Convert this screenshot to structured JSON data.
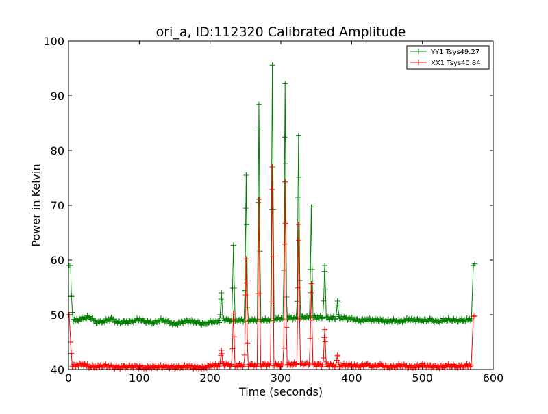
{
  "chart_data": {
    "type": "line",
    "title": "ori_a, ID:112320 Calibrated Amplitude",
    "xlabel": "Time (seconds)",
    "ylabel": "Power in Kelvin",
    "xlim": [
      0,
      600
    ],
    "ylim": [
      40,
      100
    ],
    "xticks": [
      0,
      100,
      200,
      300,
      400,
      500,
      600
    ],
    "yticks": [
      40,
      50,
      60,
      70,
      80,
      90,
      100
    ],
    "xtick_labels": [
      "0",
      "100",
      "200",
      "300",
      "400",
      "500",
      "600"
    ],
    "ytick_labels": [
      "40",
      "50",
      "60",
      "70",
      "80",
      "90",
      "100"
    ],
    "grid": false,
    "legend_position": "top-right",
    "marker": "+",
    "series": [
      {
        "name": "YY1 Tsys49.27",
        "color": "#008000",
        "baseline_points": [
          [
            3,
            49.0
          ],
          [
            10,
            49.0
          ],
          [
            20,
            49.3
          ],
          [
            30,
            49.6
          ],
          [
            40,
            48.6
          ],
          [
            50,
            48.8
          ],
          [
            60,
            49.3
          ],
          [
            70,
            48.6
          ],
          [
            80,
            48.7
          ],
          [
            90,
            48.8
          ],
          [
            100,
            49.2
          ],
          [
            110,
            48.7
          ],
          [
            120,
            48.5
          ],
          [
            130,
            49.1
          ],
          [
            140,
            48.8
          ],
          [
            150,
            48.2
          ],
          [
            160,
            48.7
          ],
          [
            170,
            48.9
          ],
          [
            180,
            48.7
          ],
          [
            190,
            48.3
          ],
          [
            200,
            48.7
          ],
          [
            210,
            48.7
          ],
          [
            220,
            49.2
          ],
          [
            230,
            48.9
          ],
          [
            240,
            49.0
          ],
          [
            250,
            49.0
          ],
          [
            260,
            49.0
          ],
          [
            270,
            49.1
          ],
          [
            280,
            49.0
          ],
          [
            290,
            49.2
          ],
          [
            300,
            49.3
          ],
          [
            310,
            49.4
          ],
          [
            320,
            49.4
          ],
          [
            330,
            49.5
          ],
          [
            340,
            49.6
          ],
          [
            350,
            49.5
          ],
          [
            360,
            49.5
          ],
          [
            370,
            49.4
          ],
          [
            380,
            49.4
          ],
          [
            390,
            49.4
          ],
          [
            400,
            49.3
          ],
          [
            410,
            48.9
          ],
          [
            420,
            49.1
          ],
          [
            430,
            49.1
          ],
          [
            440,
            49.0
          ],
          [
            450,
            48.8
          ],
          [
            460,
            48.9
          ],
          [
            470,
            48.8
          ],
          [
            480,
            49.2
          ],
          [
            490,
            49.1
          ],
          [
            500,
            48.9
          ],
          [
            510,
            49.1
          ],
          [
            520,
            48.8
          ],
          [
            530,
            49.0
          ],
          [
            540,
            49.1
          ],
          [
            550,
            48.9
          ],
          [
            560,
            49.0
          ],
          [
            570,
            49.3
          ]
        ],
        "spikes": [
          [
            1,
            59.0
          ],
          [
            3,
            59.0
          ],
          [
            4,
            53.5
          ],
          [
            216,
            54.0
          ],
          [
            233,
            62.7
          ],
          [
            251,
            75.5
          ],
          [
            269,
            88.4
          ],
          [
            288,
            95.6
          ],
          [
            306,
            92.2
          ],
          [
            325,
            82.7
          ],
          [
            343,
            69.7
          ],
          [
            362,
            59.0
          ],
          [
            380,
            52.5
          ],
          [
            572,
            59.0
          ],
          [
            574,
            59.3
          ]
        ]
      },
      {
        "name": "XX1 Tsys40.84",
        "color": "#ff0000",
        "baseline_points": [
          [
            4,
            40.5
          ],
          [
            10,
            40.8
          ],
          [
            20,
            41.0
          ],
          [
            30,
            40.5
          ],
          [
            40,
            40.5
          ],
          [
            50,
            40.7
          ],
          [
            60,
            40.5
          ],
          [
            70,
            40.4
          ],
          [
            80,
            40.5
          ],
          [
            90,
            40.6
          ],
          [
            100,
            40.5
          ],
          [
            110,
            40.3
          ],
          [
            120,
            40.5
          ],
          [
            130,
            40.5
          ],
          [
            140,
            40.5
          ],
          [
            150,
            40.4
          ],
          [
            160,
            40.5
          ],
          [
            170,
            40.6
          ],
          [
            180,
            40.4
          ],
          [
            190,
            40.3
          ],
          [
            200,
            40.7
          ],
          [
            210,
            40.7
          ],
          [
            220,
            40.9
          ],
          [
            230,
            40.8
          ],
          [
            240,
            40.7
          ],
          [
            250,
            40.9
          ],
          [
            260,
            40.8
          ],
          [
            270,
            40.8
          ],
          [
            280,
            40.9
          ],
          [
            290,
            40.8
          ],
          [
            300,
            40.8
          ],
          [
            310,
            40.9
          ],
          [
            320,
            41.0
          ],
          [
            330,
            41.0
          ],
          [
            340,
            41.0
          ],
          [
            350,
            40.9
          ],
          [
            360,
            40.8
          ],
          [
            370,
            40.8
          ],
          [
            380,
            40.6
          ],
          [
            390,
            40.8
          ],
          [
            400,
            40.8
          ],
          [
            410,
            40.6
          ],
          [
            420,
            40.9
          ],
          [
            430,
            40.6
          ],
          [
            440,
            40.8
          ],
          [
            450,
            40.5
          ],
          [
            460,
            40.5
          ],
          [
            470,
            40.8
          ],
          [
            480,
            40.5
          ],
          [
            490,
            40.5
          ],
          [
            500,
            40.8
          ],
          [
            510,
            40.6
          ],
          [
            520,
            40.5
          ],
          [
            530,
            40.6
          ],
          [
            540,
            40.7
          ],
          [
            550,
            40.5
          ],
          [
            560,
            40.7
          ],
          [
            570,
            40.8
          ]
        ],
        "spikes": [
          [
            1,
            50.0
          ],
          [
            3,
            45.0
          ],
          [
            216,
            43.5
          ],
          [
            233,
            50.3
          ],
          [
            251,
            60.2
          ],
          [
            269,
            71.0
          ],
          [
            288,
            77.0
          ],
          [
            306,
            74.3
          ],
          [
            325,
            66.5
          ],
          [
            343,
            55.7
          ],
          [
            362,
            47.3
          ],
          [
            380,
            42.6
          ],
          [
            572,
            49.7
          ],
          [
            574,
            49.8
          ]
        ]
      }
    ]
  }
}
